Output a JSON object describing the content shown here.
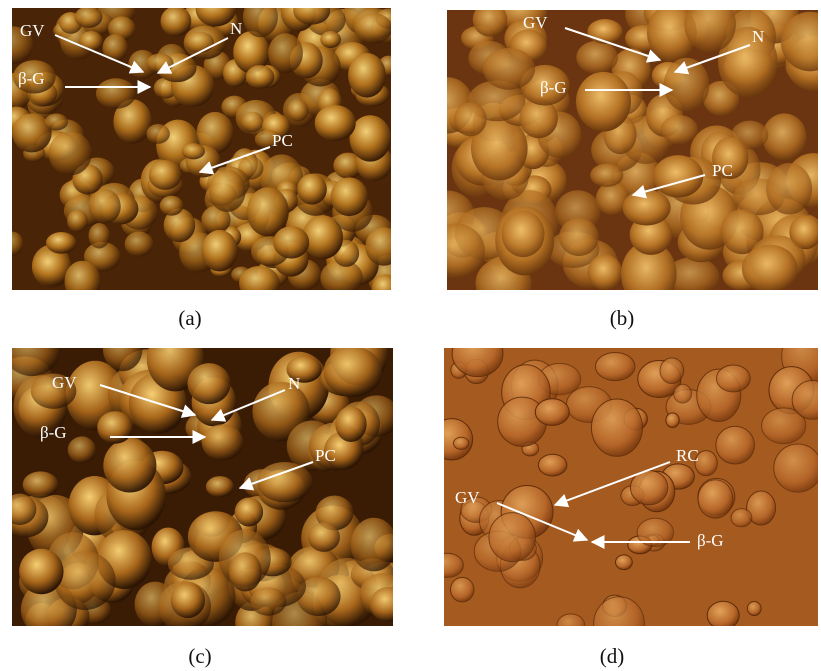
{
  "panels": [
    {
      "caption": "(a)",
      "labels": [
        "GV",
        "N",
        "β-G",
        "PC"
      ]
    },
    {
      "caption": "(b)",
      "labels": [
        "GV",
        "N",
        "β-G",
        "PC"
      ]
    },
    {
      "caption": "(c)",
      "labels": [
        "GV",
        "N",
        "β-G",
        "PC"
      ]
    },
    {
      "caption": "(d)",
      "labels": [
        "RC",
        "GV",
        "β-G"
      ]
    }
  ]
}
